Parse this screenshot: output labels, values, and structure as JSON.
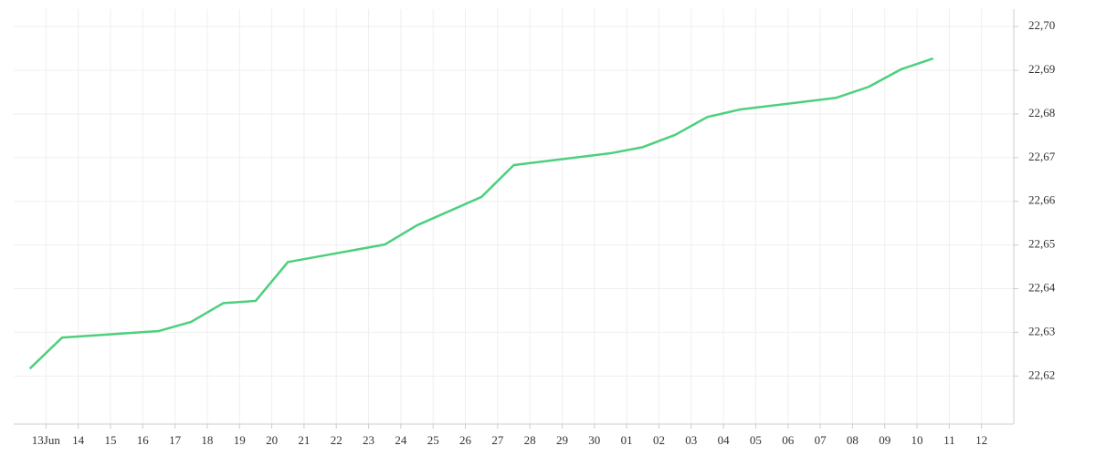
{
  "chart_data": {
    "type": "line",
    "color": "#4cd07d",
    "grid": true,
    "x": [
      -0.5,
      0.5,
      3.5,
      4.5,
      5.5,
      6.5,
      7.5,
      10.5,
      11.5,
      13.5,
      14.5,
      17.5,
      18.5,
      19.5,
      20.5,
      21.5,
      24.5,
      25.5,
      26.5,
      27.5
    ],
    "values": [
      22.6217,
      22.6288,
      22.6303,
      22.6324,
      22.6367,
      22.6372,
      22.6461,
      22.6501,
      22.6545,
      22.661,
      22.6683,
      22.671,
      22.6724,
      22.6752,
      22.6793,
      22.681,
      22.6837,
      22.6862,
      22.6902,
      22.6927
    ],
    "xlim": [
      -1,
      30
    ],
    "xticks": [
      {
        "value": 0,
        "label": "13Jun"
      },
      {
        "value": 1,
        "label": "14"
      },
      {
        "value": 2,
        "label": "15"
      },
      {
        "value": 3,
        "label": "16"
      },
      {
        "value": 4,
        "label": "17"
      },
      {
        "value": 5,
        "label": "18"
      },
      {
        "value": 6,
        "label": "19"
      },
      {
        "value": 7,
        "label": "20"
      },
      {
        "value": 8,
        "label": "21"
      },
      {
        "value": 9,
        "label": "22"
      },
      {
        "value": 10,
        "label": "23"
      },
      {
        "value": 11,
        "label": "24"
      },
      {
        "value": 12,
        "label": "25"
      },
      {
        "value": 13,
        "label": "26"
      },
      {
        "value": 14,
        "label": "27"
      },
      {
        "value": 15,
        "label": "28"
      },
      {
        "value": 16,
        "label": "29"
      },
      {
        "value": 17,
        "label": "30"
      },
      {
        "value": 18,
        "label": "01"
      },
      {
        "value": 19,
        "label": "02"
      },
      {
        "value": 20,
        "label": "03"
      },
      {
        "value": 21,
        "label": "04"
      },
      {
        "value": 22,
        "label": "05"
      },
      {
        "value": 23,
        "label": "06"
      },
      {
        "value": 24,
        "label": "07"
      },
      {
        "value": 25,
        "label": "08"
      },
      {
        "value": 26,
        "label": "09"
      },
      {
        "value": 27,
        "label": "10"
      },
      {
        "value": 28,
        "label": "11"
      },
      {
        "value": 29,
        "label": "12"
      }
    ],
    "ylim": [
      22.609,
      22.704
    ],
    "yticks": [
      {
        "value": 22.62,
        "label": "22,62"
      },
      {
        "value": 22.63,
        "label": "22,63"
      },
      {
        "value": 22.64,
        "label": "22,64"
      },
      {
        "value": 22.65,
        "label": "22,65"
      },
      {
        "value": 22.66,
        "label": "22,66"
      },
      {
        "value": 22.67,
        "label": "22,67"
      },
      {
        "value": 22.68,
        "label": "22,68"
      },
      {
        "value": 22.69,
        "label": "22,69"
      },
      {
        "value": 22.7,
        "label": "22,70"
      }
    ]
  }
}
